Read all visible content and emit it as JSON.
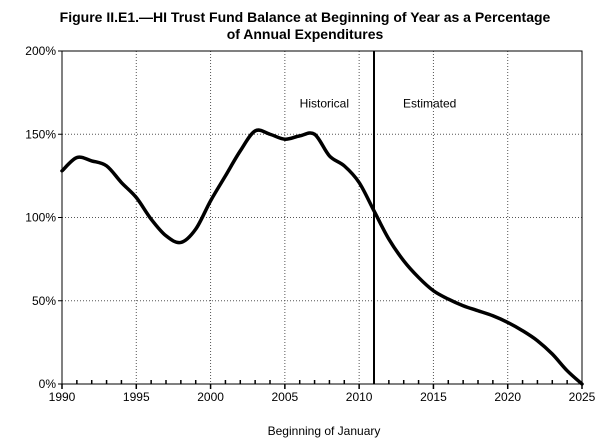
{
  "chart_data": {
    "type": "line",
    "title_line1": "Figure II.E1.—HI Trust Fund Balance at Beginning of Year as a Percentage",
    "title_line2": "of Annual Expenditures",
    "xlabel": "Beginning of January",
    "ylabel": "",
    "xlim": [
      1990,
      2025
    ],
    "ylim": [
      0,
      200
    ],
    "x_ticks": [
      1990,
      1995,
      2000,
      2005,
      2010,
      2015,
      2020,
      2025
    ],
    "y_ticks": [
      0,
      50,
      100,
      150,
      200
    ],
    "y_tick_labels": [
      "0%",
      "50%",
      "100%",
      "150%",
      "200%"
    ],
    "grid": true,
    "divider_x": 2011,
    "annotations": {
      "historical": "Historical",
      "estimated": "Estimated"
    },
    "series": [
      {
        "color": "#000000",
        "x": [
          1990,
          1991,
          1992,
          1993,
          1994,
          1995,
          1996,
          1997,
          1998,
          1999,
          2000,
          2001,
          2002,
          2003,
          2004,
          2005,
          2006,
          2007,
          2008,
          2009,
          2010,
          2011,
          2012,
          2013,
          2014,
          2015,
          2016,
          2017,
          2018,
          2019,
          2020,
          2021,
          2022,
          2023,
          2024,
          2025
        ],
        "y": [
          128,
          136,
          134,
          131,
          121,
          112,
          99,
          89,
          85,
          93,
          110,
          125,
          140,
          152,
          150,
          147,
          149,
          150,
          137,
          131,
          121,
          104,
          87,
          74,
          64,
          56,
          51,
          47,
          44,
          41,
          37,
          32,
          26,
          18,
          8,
          0
        ]
      }
    ]
  }
}
